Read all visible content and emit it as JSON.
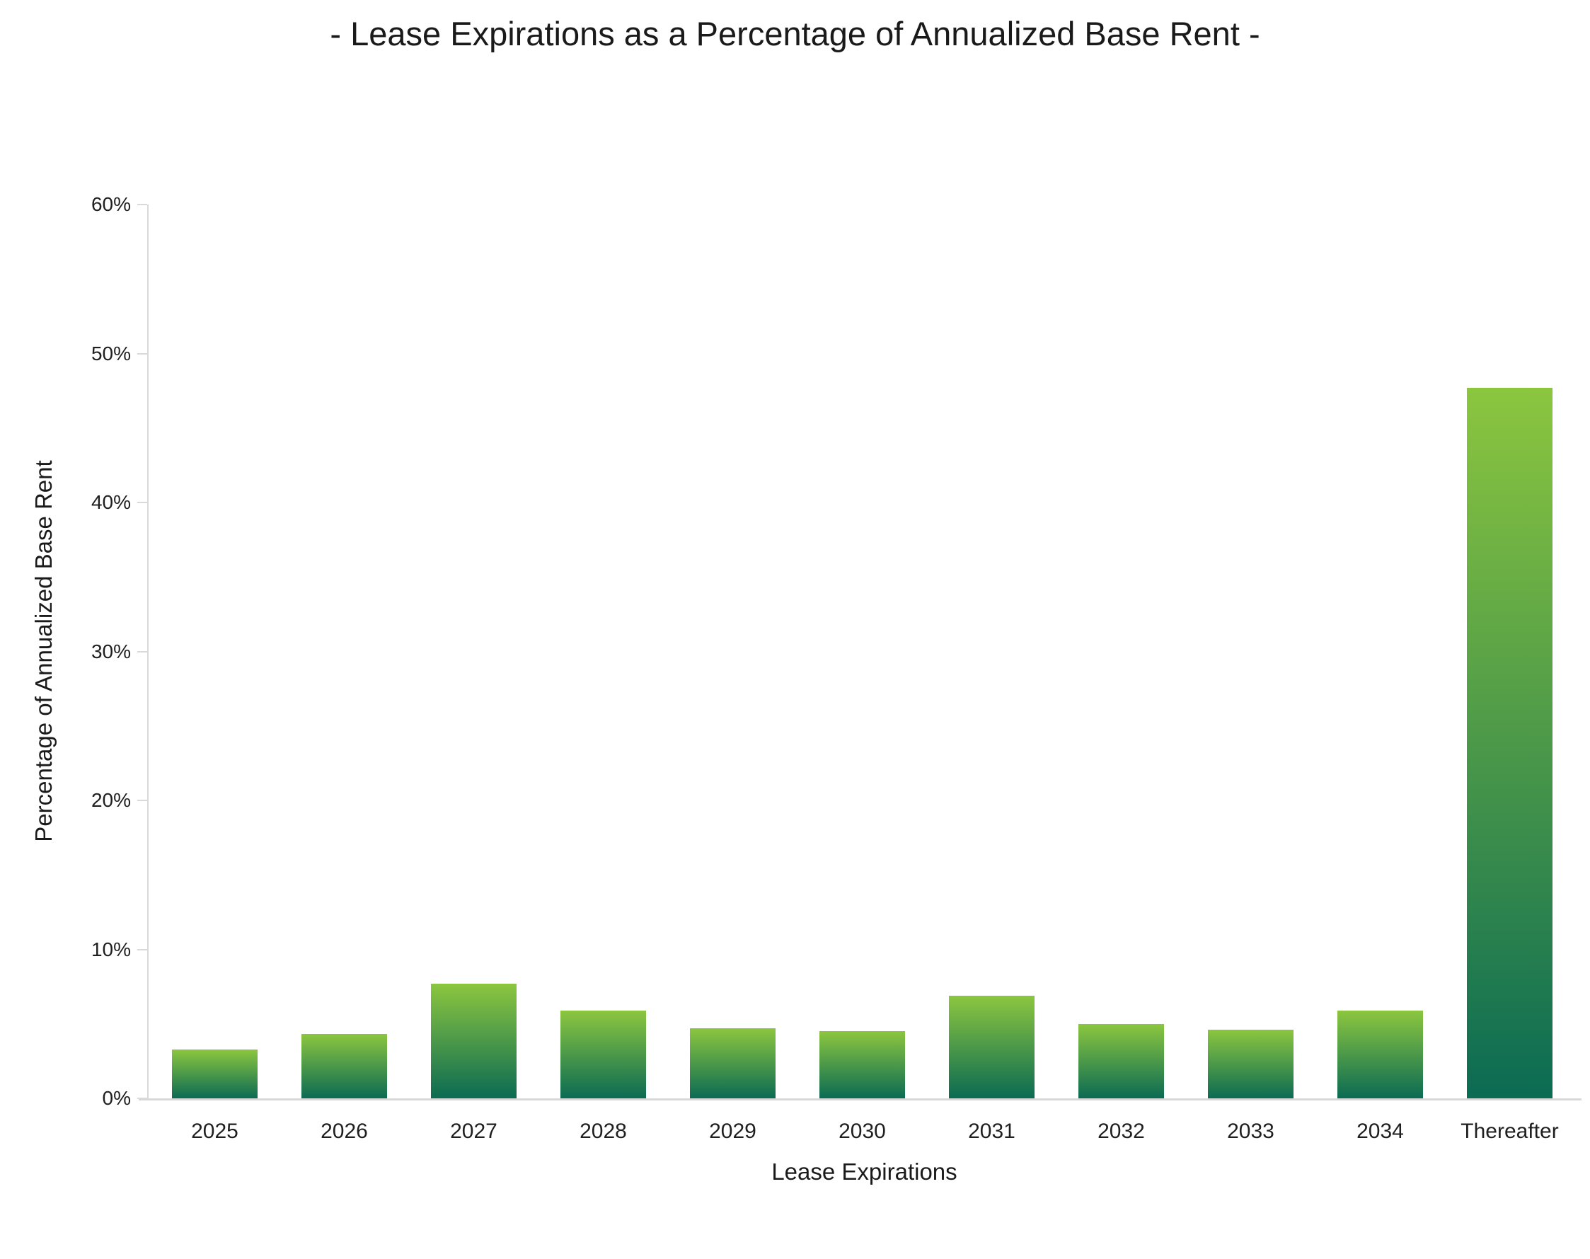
{
  "chart_data": {
    "type": "bar",
    "title": "- Lease Expirations as a Percentage of Annualized Base Rent -",
    "xlabel": "Lease Expirations",
    "ylabel": "Percentage of Annualized Base Rent",
    "categories": [
      "2025",
      "2026",
      "2027",
      "2028",
      "2029",
      "2030",
      "2031",
      "2032",
      "2033",
      "2034",
      "Thereafter"
    ],
    "values": [
      3.3,
      4.3,
      7.7,
      5.9,
      4.7,
      4.5,
      6.9,
      5.0,
      4.6,
      5.9,
      47.7
    ],
    "unit": "%",
    "ylim": [
      0,
      60
    ],
    "ytick_step": 10,
    "ytick_labels": [
      "0%",
      "10%",
      "20%",
      "30%",
      "40%",
      "50%",
      "60%"
    ],
    "grid": false,
    "legend": "none",
    "colors": {
      "bar_gradient_top": "#8cc63f",
      "bar_gradient_bottom": "#0b6b53",
      "axis_line": "#d9d9d9",
      "text": "#1f1f1f"
    }
  }
}
